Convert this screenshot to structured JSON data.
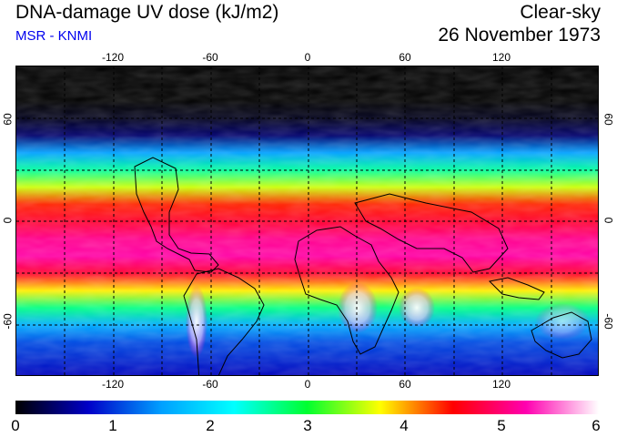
{
  "header": {
    "title": "DNA-damage UV dose (kJ/m2)",
    "subtitle": "MSR - KNMI",
    "mode": "Clear-sky",
    "date": "26 November 1973"
  },
  "map": {
    "lon_labels": [
      "-120",
      "-60",
      "0",
      "60",
      "120"
    ],
    "lat_labels": [
      "60",
      "0",
      "-60"
    ],
    "lon_range": [
      -180,
      180
    ],
    "lat_range": [
      -90,
      90
    ]
  },
  "colorbar": {
    "min": 0,
    "max": 6,
    "labels": [
      "0",
      "1",
      "2",
      "3",
      "4",
      "5",
      "6"
    ],
    "stops": [
      "#000000",
      "#0000c8",
      "#00a0ff",
      "#00ffff",
      "#00ff30",
      "#ffff00",
      "#ff0000",
      "#ff00b0",
      "#ffffff"
    ]
  },
  "chart_data": {
    "type": "heatmap",
    "title": "DNA-damage UV dose (kJ/m2)",
    "variable": "DNA-damage UV dose",
    "units": "kJ/m2",
    "condition": "Clear-sky",
    "date": "26 November 1973",
    "zonal_profile": {
      "lat": [
        90,
        70,
        60,
        50,
        40,
        30,
        20,
        10,
        0,
        -10,
        -20,
        -30,
        -40,
        -50,
        -60,
        -70,
        -90
      ],
      "dose": [
        0.0,
        0.0,
        0.1,
        0.4,
        1.5,
        2.6,
        3.6,
        4.4,
        4.7,
        5.1,
        5.2,
        4.7,
        3.8,
        2.7,
        1.6,
        1.1,
        0.7
      ]
    },
    "xlabel": "Longitude",
    "ylabel": "Latitude",
    "xlim": [
      -180,
      180
    ],
    "ylim": [
      -90,
      90
    ]
  }
}
